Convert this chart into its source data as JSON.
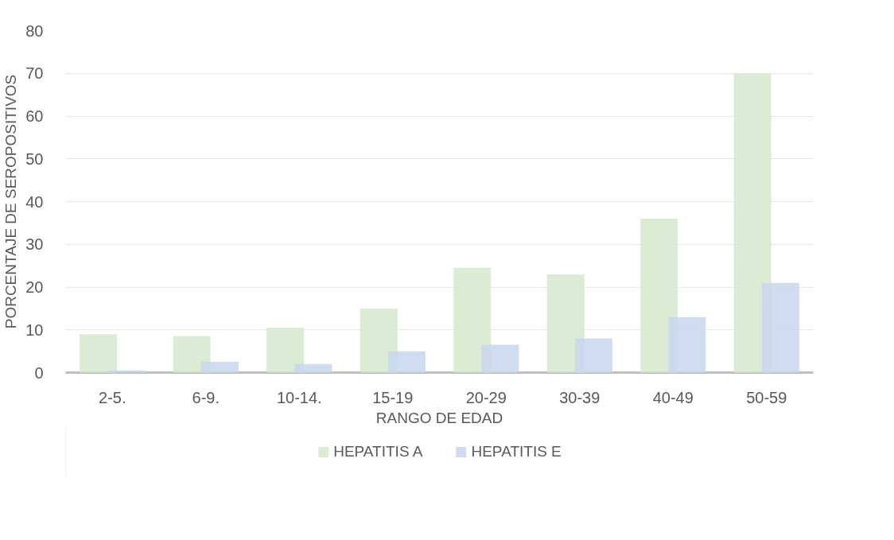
{
  "chart_data": {
    "type": "bar",
    "xlabel": "RANGO DE EDAD",
    "ylabel": "PORCENTAJE DE SEROPOSITIVOS",
    "categories": [
      "2-5.",
      "6-9.",
      "10-14.",
      "15-19",
      "20-29",
      "30-39",
      "40-49",
      "50-59"
    ],
    "series": [
      {
        "name": "HEPATITIS A",
        "color": "#d5e8cc",
        "values": [
          9,
          8.5,
          10.5,
          15,
          24.5,
          23,
          36,
          70
        ]
      },
      {
        "name": "HEPATITIS E",
        "color": "#c8d7ef",
        "values": [
          0.5,
          2.5,
          2,
          5,
          6.5,
          8,
          13,
          21
        ]
      }
    ],
    "ylim": [
      0,
      80
    ],
    "yticks": [
      0,
      10,
      20,
      30,
      40,
      50,
      60,
      70,
      80
    ],
    "grid": "y",
    "legend": "bottom"
  }
}
